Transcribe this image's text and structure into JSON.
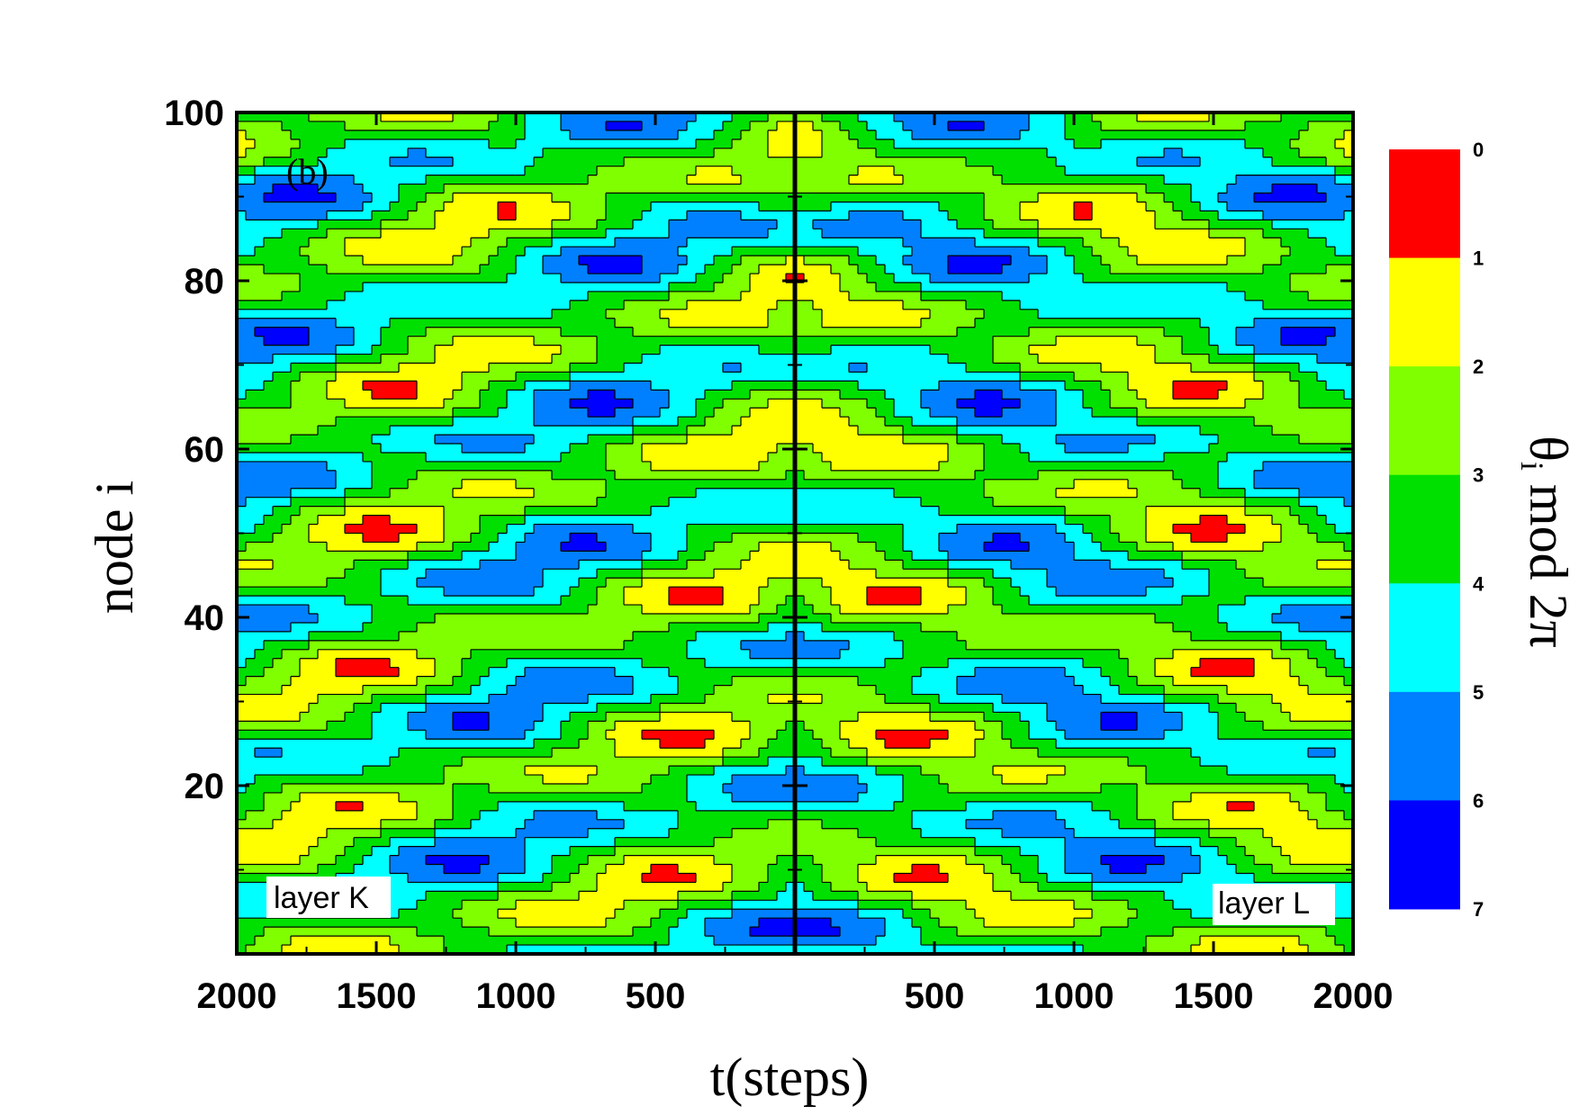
{
  "chart_data": {
    "type": "heatmap",
    "panel_label": "(b)",
    "xlabel": "t(steps)",
    "ylabel": "node i",
    "colorbar_label_main": "θ",
    "colorbar_label_sub": "i",
    "colorbar_label_rest": " mod 2π",
    "ylim": [
      1,
      100
    ],
    "yticks": [
      "20",
      "40",
      "60",
      "80",
      "100"
    ],
    "ytick_values": [
      20,
      40,
      60,
      80,
      100
    ],
    "panels": [
      {
        "name": "layer K",
        "xlim": [
          2000,
          0
        ],
        "xticks": [
          "2000",
          "1500",
          "1000",
          "500"
        ],
        "xtick_values": [
          2000,
          1500,
          1000,
          500
        ]
      },
      {
        "name": "layer L",
        "xlim": [
          0,
          2000
        ],
        "xticks": [
          "500",
          "1000",
          "1500",
          "2000"
        ],
        "xtick_values": [
          500,
          1000,
          1500,
          2000
        ]
      }
    ],
    "colorbar": {
      "levels": [
        "0",
        "1",
        "2",
        "3",
        "4",
        "5",
        "6",
        "7"
      ],
      "level_values": [
        0,
        1,
        2,
        3,
        4,
        5,
        6,
        7
      ],
      "colors": [
        "#ff0000",
        "#ffff00",
        "#80ff00",
        "#00e000",
        "#00ffff",
        "#0080ff",
        "#0000ff"
      ]
    },
    "field_description_values": {
      "comment_free": true
    }
  }
}
